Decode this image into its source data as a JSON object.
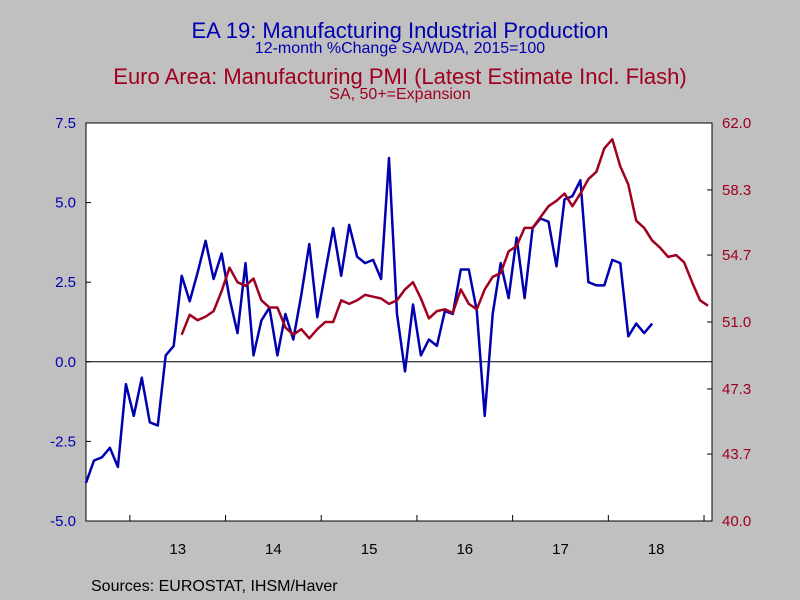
{
  "titles": {
    "line1": "EA 19: Manufacturing Industrial Production",
    "line2": "12-month %Change      SA/WDA, 2015=100",
    "line3": "Euro Area: Manufacturing PMI (Latest Estimate Incl. Flash)",
    "line4": "SA, 50+=Expansion"
  },
  "source": "Sources:  EUROSTAT, IHSM/Haver",
  "colors": {
    "left_series": "#0000b0",
    "right_series": "#a00020",
    "plot_bg": "#ffffff",
    "page_bg": "#c0c0c0"
  },
  "chart_data": {
    "type": "line",
    "x_labels": [
      "13",
      "14",
      "15",
      "16",
      "17",
      "18"
    ],
    "left_axis": {
      "min": -5.0,
      "max": 7.5,
      "ticks": [
        "7.5",
        "5.0",
        "2.5",
        "0.0",
        "-2.5",
        "-5.0"
      ]
    },
    "right_axis": {
      "min": 40.0,
      "max": 62.0,
      "ticks": [
        "62.0",
        "58.3",
        "54.7",
        "51.0",
        "47.3",
        "43.7",
        "40.0"
      ]
    },
    "x_start": "2012-07",
    "series": [
      {
        "axis": "left",
        "color": "#0000b0",
        "start": "2012-07",
        "values": [
          -3.8,
          -3.1,
          -3.0,
          -2.7,
          -3.3,
          -0.7,
          -1.7,
          -0.5,
          -1.9,
          -2.0,
          0.2,
          0.5,
          2.7,
          1.9,
          2.8,
          3.8,
          2.6,
          3.4,
          2.0,
          0.9,
          3.1,
          0.2,
          1.3,
          1.7,
          0.2,
          1.5,
          0.7,
          2.1,
          3.7,
          1.4,
          2.8,
          4.2,
          2.7,
          4.3,
          3.3,
          3.1,
          3.2,
          2.6,
          6.4,
          1.5,
          -0.3,
          1.8,
          0.2,
          0.7,
          0.5,
          1.6,
          1.5,
          2.9,
          2.9,
          1.6,
          -1.7,
          1.5,
          3.1,
          2.0,
          3.9,
          2.0,
          4.2,
          4.5,
          4.4,
          3.0,
          5.1,
          5.2,
          5.7,
          2.5,
          2.4,
          2.4,
          3.2,
          3.1,
          0.8,
          1.2,
          0.9,
          1.2
        ]
      },
      {
        "axis": "right",
        "color": "#a00020",
        "start": "2013-07",
        "values": [
          50.3,
          51.4,
          51.1,
          51.3,
          51.6,
          52.7,
          54.0,
          53.2,
          53.0,
          53.4,
          52.2,
          51.8,
          51.8,
          50.7,
          50.3,
          50.6,
          50.1,
          50.6,
          51.0,
          51.0,
          52.2,
          52.0,
          52.2,
          52.5,
          52.4,
          52.3,
          52.0,
          52.2,
          52.8,
          53.2,
          52.3,
          51.2,
          51.6,
          51.7,
          51.5,
          52.8,
          52.0,
          51.7,
          52.8,
          53.5,
          53.7,
          54.9,
          55.2,
          56.2,
          56.2,
          56.8,
          57.4,
          57.7,
          58.1,
          57.4,
          58.1,
          58.9,
          59.3,
          60.6,
          61.1,
          59.6,
          58.6,
          56.6,
          56.2,
          55.5,
          55.1,
          54.6,
          54.7,
          54.3,
          53.2,
          52.2,
          51.9
        ]
      }
    ]
  }
}
